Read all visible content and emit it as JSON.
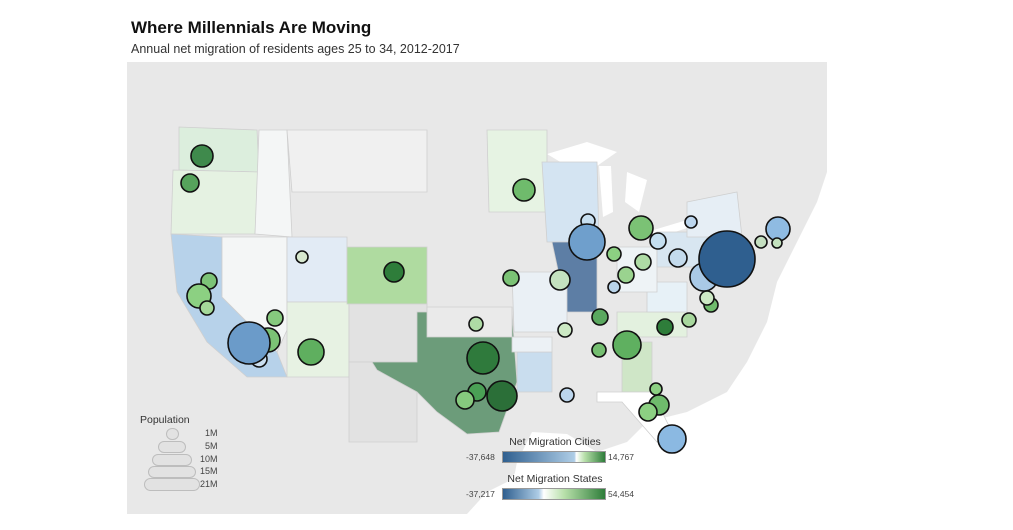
{
  "title": "Where Millennials Are Moving",
  "subtitle": "Annual net migration of residents ages 25 to 34, 2012-2017",
  "colors": {
    "neg_dark": "#2f5f8f",
    "neg_light": "#aecde6",
    "neutral": "#f3f3f3",
    "pos_light": "#b8e0aa",
    "pos_dark": "#2e7d3a",
    "land": "#e9e9e9",
    "water": "#ffffff"
  },
  "legend": {
    "population_title": "Population",
    "population_levels": [
      "1M",
      "5M",
      "10M",
      "15M",
      "21M"
    ],
    "cities_title": "Net Migration Cities",
    "cities_min": "-37,648",
    "cities_max": "14,767",
    "states_title": "Net Migration States",
    "states_min": "-37,217",
    "states_max": "54,454"
  }
}
